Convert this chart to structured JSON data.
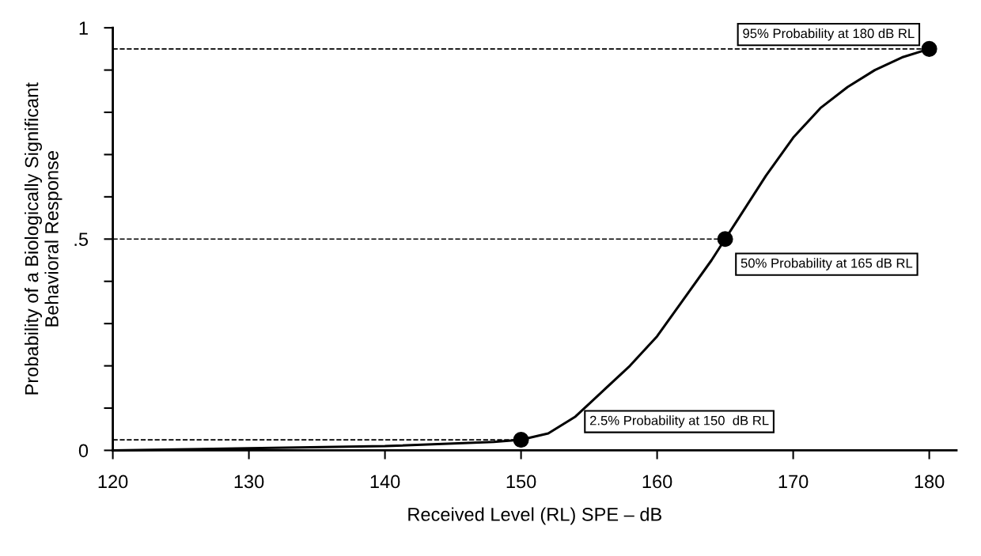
{
  "chart_data": {
    "type": "line",
    "xlabel": "Received Level (RL) SPE – dB",
    "ylabel": "Probability of a Biologically Significant\nBehavioral Response",
    "xlim": [
      120,
      182
    ],
    "xticks": [
      120,
      130,
      140,
      150,
      160,
      170,
      180
    ],
    "ylim": [
      0,
      1
    ],
    "yticks": [
      0,
      {
        "value": 0.1,
        "label": null
      },
      {
        "value": 0.2,
        "label": null
      },
      {
        "value": 0.3,
        "label": null
      },
      {
        "value": 0.4,
        "label": null
      },
      {
        "value": 0.5,
        "label": ".5"
      },
      {
        "value": 0.6,
        "label": null
      },
      {
        "value": 0.7,
        "label": null
      },
      {
        "value": 0.8,
        "label": null
      },
      {
        "value": 0.9,
        "label": null
      },
      1
    ],
    "grid": false,
    "legend": false,
    "series": [
      {
        "color": "#000000",
        "marker": "none",
        "line_style": "solid",
        "x": [
          120,
          130,
          140,
          148,
          150,
          152,
          154,
          156,
          158,
          160,
          162,
          164,
          165,
          166,
          168,
          170,
          172,
          174,
          176,
          178,
          180
        ],
        "values": [
          0,
          0.005,
          0.01,
          0.02,
          0.025,
          0.04,
          0.08,
          0.14,
          0.2,
          0.27,
          0.36,
          0.45,
          0.5,
          0.55,
          0.65,
          0.74,
          0.81,
          0.86,
          0.9,
          0.93,
          0.95
        ]
      },
      {
        "type": "scatter",
        "color": "#000000",
        "marker": "circle",
        "x": [
          150,
          165,
          180
        ],
        "values": [
          0.025,
          0.5,
          0.95
        ]
      }
    ],
    "ref_lines": [
      {
        "axis": "y",
        "value": 0.95,
        "line_style": "dashed",
        "color": "#000000"
      },
      {
        "axis": "y",
        "value": 0.5,
        "line_style": "dashed",
        "color": "#000000"
      },
      {
        "axis": "y",
        "value": 0.025,
        "line_style": "dashed",
        "color": "#000000"
      }
    ],
    "annotations": [
      {
        "text": "95% Probability at 180 dB RL",
        "x": 180,
        "y": 0.95
      },
      {
        "text": "50% Probability at 165 dB RL",
        "x": 165,
        "y": 0.5
      },
      "2.5% Probability at 150  dB RL"
    ]
  }
}
